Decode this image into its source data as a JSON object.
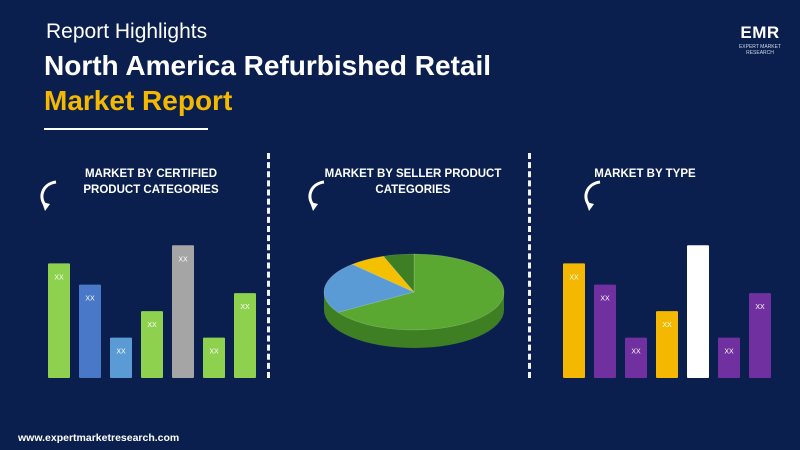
{
  "header": {
    "kicker": "Report Highlights",
    "title_line1": "North America Refurbished Retail",
    "title_line2": "Market Report"
  },
  "logo": {
    "text": "EMR",
    "subtext": "EXPERT MARKET RESEARCH"
  },
  "footer": {
    "url": "www.expertmarketresearch.com"
  },
  "colors": {
    "background": "#0b1f4f",
    "accent": "#f5b800"
  },
  "chart_data": [
    {
      "type": "bar",
      "panel_title": "MARKET BY CERTIFIED PRODUCT CATEGORIES",
      "icon": "curved-arrow-icon",
      "categories": [
        "",
        "",
        "",
        "",
        "",
        "",
        ""
      ],
      "values": [
        108,
        88,
        38,
        63,
        125,
        38,
        80
      ],
      "data_labels": [
        "XX",
        "XX",
        "XX",
        "XX",
        "XX",
        "XX",
        "XX"
      ],
      "colors": [
        "#8ed14f",
        "#4a78c8",
        "#5b9bd5",
        "#8ed14f",
        "#a5a5a5",
        "#8ed14f",
        "#8ed14f"
      ],
      "ylim": [
        0,
        130
      ]
    },
    {
      "type": "pie",
      "panel_title": "MARKET BY SELLER PRODUCT CATEGORIES",
      "icon": "curved-arrow-icon",
      "values": [
        66,
        22,
        6.5,
        5.5
      ],
      "colors": [
        "#5aa832",
        "#5b9bd5",
        "#f5c000",
        "#3f7f24"
      ]
    },
    {
      "type": "bar",
      "panel_title": "MARKET BY TYPE",
      "icon": "curved-arrow-icon",
      "categories": [
        "",
        "",
        "",
        "",
        "",
        "",
        ""
      ],
      "values": [
        108,
        88,
        38,
        63,
        125,
        38,
        80
      ],
      "data_labels": [
        "XX",
        "XX",
        "XX",
        "XX",
        "XX",
        "XX",
        "XX"
      ],
      "colors": [
        "#f5b800",
        "#7030a0",
        "#7030a0",
        "#f5b800",
        "#ffffff",
        "#7030a0",
        "#7030a0"
      ],
      "ylim": [
        0,
        130
      ]
    }
  ]
}
